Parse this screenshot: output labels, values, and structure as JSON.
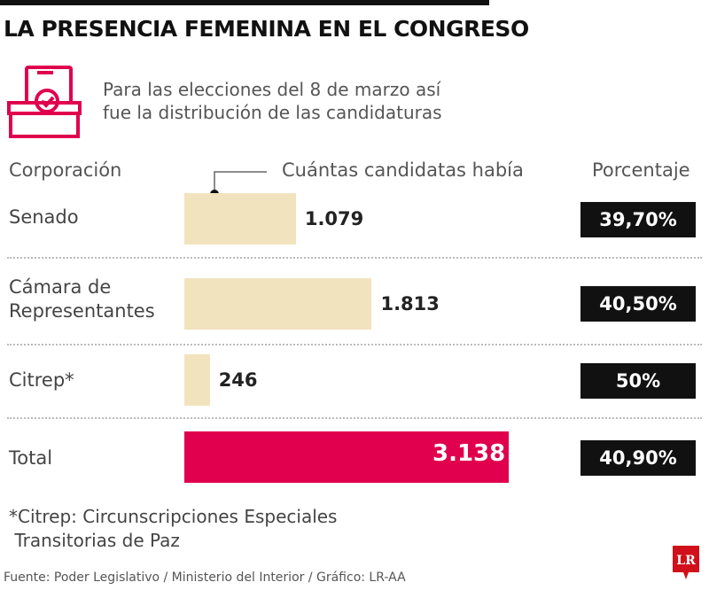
{
  "title": "LA PRESENCIA FEMENINA EN EL CONGRESO",
  "icon": "ballot-box-icon",
  "intro": [
    "Para las elecciones del 8 de marzo así",
    "fue la distribución de las candidaturas"
  ],
  "headers": {
    "corporacion": "Corporación",
    "candidatas": "Cuántas candidatas había",
    "porcentaje": "Porcentaje"
  },
  "chart_data": {
    "type": "bar",
    "orientation": "horizontal",
    "categories": [
      "Senado",
      "Cámara de Representantes",
      "Citrep*",
      "Total"
    ],
    "values": [
      1079,
      1813,
      246,
      3138
    ],
    "value_labels": [
      "1.079",
      "1.813",
      "246",
      "3.138"
    ],
    "percentages": [
      "39,70%",
      "40,50%",
      "50%",
      "40,90%"
    ],
    "colors": [
      "#f2e3bf",
      "#f2e3bf",
      "#f2e3bf",
      "#e0004d"
    ]
  },
  "rows": [
    {
      "label": [
        "Senado"
      ]
    },
    {
      "label": [
        "Cámara de",
        "Representantes"
      ]
    },
    {
      "label": [
        "Citrep*"
      ]
    },
    {
      "label": [
        "Total"
      ]
    }
  ],
  "note": [
    "*Citrep: Circunscripciones Especiales",
    " Transitorias de Paz"
  ],
  "source": "Fuente: Poder Legislativo / Ministerio del Interior / Gráfico: LR-AA",
  "logo": "LR",
  "colors": {
    "accent": "#e0004d",
    "bar": "#f2e3bf",
    "logo": "#d0101a"
  }
}
